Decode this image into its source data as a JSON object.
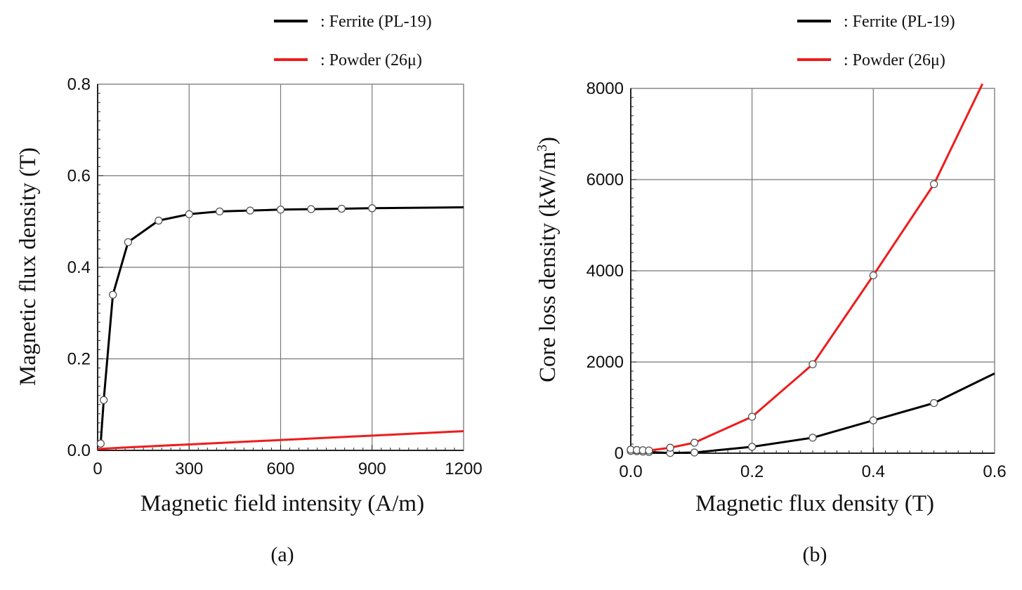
{
  "colors": {
    "ferrite": "#000000",
    "powder": "#ee1c1c",
    "grid": "#777777",
    "frame": "#888888"
  },
  "chart_data": [
    {
      "type": "line",
      "panel_label": "(a)",
      "xlabel": "Magnetic field intensity (A/m)",
      "ylabel": "Magnetic flux density (T)",
      "xlim": [
        0,
        1200
      ],
      "ylim": [
        0,
        0.8
      ],
      "xticks": [
        0,
        300,
        600,
        900,
        1200
      ],
      "xtick_labels": [
        "0",
        "300",
        "600",
        "900",
        "1200"
      ],
      "yticks": [
        0,
        0.2,
        0.4,
        0.6,
        0.8
      ],
      "ytick_labels": [
        "0.0",
        "0.2",
        "0.4",
        "0.6",
        "0.8"
      ],
      "grid": true,
      "legend_placement": "top-right, above plot",
      "series": [
        {
          "name": ": Ferrite (PL-19)",
          "color": "black",
          "x": [
            10,
            20,
            50,
            100,
            200,
            300,
            400,
            500,
            600,
            700,
            800,
            900,
            1200
          ],
          "y": [
            0.015,
            0.11,
            0.34,
            0.455,
            0.502,
            0.516,
            0.522,
            0.524,
            0.526,
            0.527,
            0.528,
            0.529,
            0.531
          ],
          "markers": true
        },
        {
          "name": ": Powder (26μ)",
          "color": "red",
          "x": [
            0,
            80,
            1200
          ],
          "y": [
            0.003,
            0.006,
            0.042
          ],
          "markers": false
        }
      ]
    },
    {
      "type": "line",
      "panel_label": "(b)",
      "xlabel": "Magnetic flux density (T)",
      "ylabel": "Core loss density (kW/m",
      "ylabel_sup": "3",
      "ylabel_end": ")",
      "xlim": [
        0,
        0.6
      ],
      "ylim": [
        0,
        8000
      ],
      "xticks": [
        0,
        0.2,
        0.4,
        0.6
      ],
      "xtick_labels": [
        "0.0",
        "0.2",
        "0.4",
        "0.6"
      ],
      "yticks": [
        0,
        2000,
        4000,
        6000,
        8000
      ],
      "ytick_labels": [
        "0",
        "2000",
        "4000",
        "6000",
        "8000"
      ],
      "grid": true,
      "legend_placement": "top-right, above plot",
      "series": [
        {
          "name": ": Ferrite (PL-19)",
          "color": "black",
          "x": [
            0.0,
            0.01,
            0.02,
            0.03,
            0.065,
            0.105,
            0.2,
            0.3,
            0.4,
            0.5,
            0.6
          ],
          "y": [
            50,
            45,
            35,
            25,
            5,
            15,
            140,
            340,
            720,
            1100,
            1750
          ],
          "markers": true
        },
        {
          "name": ": Powder (26μ)",
          "color": "red",
          "x": [
            0.0,
            0.01,
            0.02,
            0.03,
            0.065,
            0.105,
            0.2,
            0.3,
            0.4,
            0.5,
            0.58
          ],
          "y": [
            80,
            70,
            65,
            60,
            120,
            230,
            800,
            1950,
            3900,
            5900,
            8100
          ],
          "markers": true
        }
      ]
    }
  ]
}
